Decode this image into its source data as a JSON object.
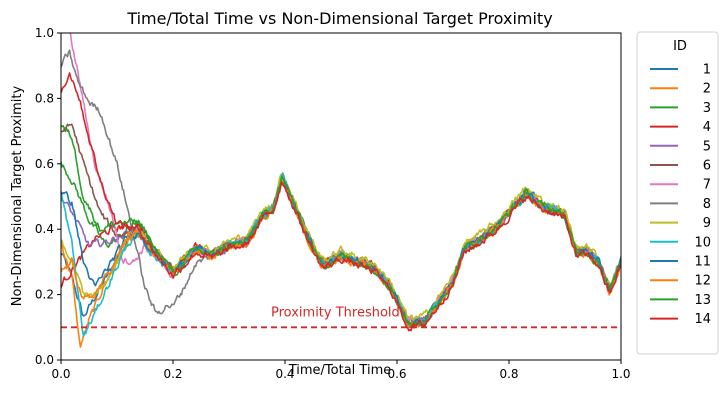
{
  "chart_data": {
    "type": "line",
    "title": "Time/Total Time vs Non-Dimensional Target Proximity",
    "xlabel": "Time/Total Time",
    "ylabel": "Non-Dimensional Target Proximity",
    "xlim": [
      0.0,
      1.0
    ],
    "ylim": [
      0.0,
      1.0
    ],
    "xticks": [
      "0.0",
      "0.2",
      "0.4",
      "0.6",
      "0.8",
      "1.0"
    ],
    "yticks": [
      "0.0",
      "0.2",
      "0.4",
      "0.6",
      "0.8",
      "1.0"
    ],
    "grid": false,
    "legend": {
      "title": "ID",
      "placement": "outside-right"
    },
    "threshold": {
      "label": "Proximity Threshold",
      "value": 0.1,
      "color": "#d62728",
      "style": "dashed"
    },
    "common_trajectory": {
      "x": [
        0.14,
        0.16,
        0.2,
        0.22,
        0.24,
        0.27,
        0.3,
        0.33,
        0.36,
        0.38,
        0.395,
        0.42,
        0.44,
        0.46,
        0.47,
        0.5,
        0.53,
        0.56,
        0.59,
        0.62,
        0.65,
        0.68,
        0.7,
        0.72,
        0.75,
        0.78,
        0.81,
        0.83,
        0.86,
        0.88,
        0.9,
        0.92,
        0.94,
        0.96,
        0.98,
        1.0
      ],
      "y": [
        0.42,
        0.36,
        0.27,
        0.3,
        0.34,
        0.32,
        0.35,
        0.36,
        0.44,
        0.47,
        0.56,
        0.46,
        0.38,
        0.31,
        0.29,
        0.32,
        0.3,
        0.28,
        0.22,
        0.11,
        0.12,
        0.19,
        0.24,
        0.34,
        0.37,
        0.41,
        0.47,
        0.51,
        0.47,
        0.46,
        0.44,
        0.33,
        0.33,
        0.3,
        0.21,
        0.3
      ]
    },
    "series": [
      {
        "name": "1",
        "color": "#1f77b4",
        "start": [
          [
            0.0,
            0.33
          ],
          [
            0.02,
            0.25
          ],
          [
            0.04,
            0.13
          ],
          [
            0.06,
            0.19
          ],
          [
            0.09,
            0.28
          ],
          [
            0.12,
            0.38
          ]
        ]
      },
      {
        "name": "2",
        "color": "#ff7f0e",
        "start": [
          [
            0.0,
            0.36
          ],
          [
            0.02,
            0.25
          ],
          [
            0.034,
            0.04
          ],
          [
            0.05,
            0.12
          ],
          [
            0.08,
            0.24
          ],
          [
            0.12,
            0.36
          ]
        ]
      },
      {
        "name": "3",
        "color": "#2ca02c",
        "start": [
          [
            0.0,
            0.6
          ],
          [
            0.02,
            0.55
          ],
          [
            0.05,
            0.43
          ],
          [
            0.08,
            0.35
          ],
          [
            0.11,
            0.38
          ],
          [
            0.13,
            0.42
          ]
        ]
      },
      {
        "name": "4",
        "color": "#d62728",
        "start": [
          [
            0.0,
            0.23
          ],
          [
            0.03,
            0.3
          ],
          [
            0.06,
            0.37
          ],
          [
            0.09,
            0.4
          ],
          [
            0.12,
            0.41
          ]
        ]
      },
      {
        "name": "5",
        "color": "#9467bd",
        "start": [
          [
            0.0,
            0.5
          ],
          [
            0.02,
            0.45
          ],
          [
            0.05,
            0.35
          ],
          [
            0.08,
            0.36
          ],
          [
            0.11,
            0.38
          ],
          [
            0.13,
            0.4
          ]
        ]
      },
      {
        "name": "6",
        "color": "#8c564b",
        "start": [
          [
            0.0,
            0.7
          ],
          [
            0.02,
            0.72
          ],
          [
            0.04,
            0.6
          ],
          [
            0.07,
            0.45
          ],
          [
            0.1,
            0.38
          ],
          [
            0.13,
            0.4
          ]
        ]
      },
      {
        "name": "7",
        "color": "#e377c2",
        "start": [
          [
            0.015,
            1.0
          ],
          [
            0.03,
            0.88
          ],
          [
            0.06,
            0.6
          ],
          [
            0.09,
            0.45
          ],
          [
            0.11,
            0.31
          ],
          [
            0.13,
            0.3
          ],
          [
            0.15,
            0.35
          ]
        ]
      },
      {
        "name": "8",
        "color": "#7f7f7f",
        "start": [
          [
            0.0,
            0.9
          ],
          [
            0.015,
            0.94
          ],
          [
            0.03,
            0.85
          ],
          [
            0.05,
            0.79
          ],
          [
            0.07,
            0.76
          ],
          [
            0.1,
            0.6
          ],
          [
            0.13,
            0.38
          ],
          [
            0.15,
            0.22
          ],
          [
            0.17,
            0.14
          ],
          [
            0.19,
            0.17
          ]
        ]
      },
      {
        "name": "9",
        "color": "#bcbd22",
        "start": [
          [
            0.0,
            0.36
          ],
          [
            0.02,
            0.3
          ],
          [
            0.04,
            0.2
          ],
          [
            0.06,
            0.2
          ],
          [
            0.09,
            0.26
          ],
          [
            0.12,
            0.38
          ]
        ]
      },
      {
        "name": "10",
        "color": "#17becf",
        "start": [
          [
            0.0,
            0.51
          ],
          [
            0.02,
            0.35
          ],
          [
            0.04,
            0.07
          ],
          [
            0.06,
            0.14
          ],
          [
            0.09,
            0.25
          ],
          [
            0.12,
            0.36
          ]
        ]
      },
      {
        "name": "11",
        "color": "#1f77b4",
        "start": [
          [
            0.0,
            0.52
          ],
          [
            0.02,
            0.48
          ],
          [
            0.04,
            0.3
          ],
          [
            0.06,
            0.22
          ],
          [
            0.09,
            0.3
          ],
          [
            0.12,
            0.38
          ]
        ]
      },
      {
        "name": "12",
        "color": "#ff7f0e",
        "start": [
          [
            0.0,
            0.27
          ],
          [
            0.02,
            0.3
          ],
          [
            0.04,
            0.18
          ],
          [
            0.06,
            0.2
          ],
          [
            0.09,
            0.28
          ],
          [
            0.12,
            0.38
          ]
        ]
      },
      {
        "name": "13",
        "color": "#2ca02c",
        "start": [
          [
            0.0,
            0.72
          ],
          [
            0.02,
            0.68
          ],
          [
            0.04,
            0.5
          ],
          [
            0.07,
            0.4
          ],
          [
            0.1,
            0.42
          ],
          [
            0.13,
            0.42
          ]
        ]
      },
      {
        "name": "14",
        "color": "#d62728",
        "start": [
          [
            0.0,
            0.82
          ],
          [
            0.015,
            0.88
          ],
          [
            0.03,
            0.82
          ],
          [
            0.05,
            0.68
          ],
          [
            0.07,
            0.55
          ],
          [
            0.1,
            0.42
          ],
          [
            0.13,
            0.4
          ]
        ]
      }
    ]
  }
}
